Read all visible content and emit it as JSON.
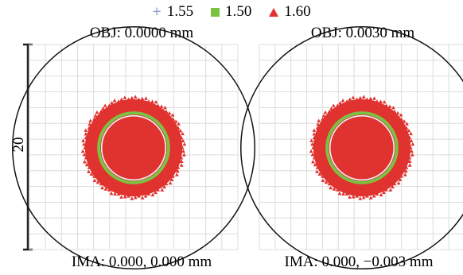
{
  "chart_data": {
    "type": "scatter",
    "chart_kind": "spot diagram",
    "legend": {
      "placement": "top-center",
      "entries": [
        {
          "label": "1.55",
          "symbol": "cross",
          "color": "#8fa0d8"
        },
        {
          "label": "1.50",
          "symbol": "square",
          "color": "#7cc142"
        },
        {
          "label": "1.60",
          "symbol": "triangle",
          "color": "#e0322e"
        }
      ]
    },
    "scale_bar": {
      "label": "20",
      "value": 20
    },
    "grid": true,
    "plots": [
      {
        "title": "OBJ: 0.0000 mm",
        "caption": "IMA: 0.000, 0.000 mm",
        "airy_radius": 11.8,
        "spot_radius_160": 4.9,
        "spot_radius_150": 3.4,
        "spot_radius_155": 3.2
      },
      {
        "title": "OBJ: 0.0030 mm",
        "caption": "IMA: 0.000, −0.003 mm",
        "airy_radius": 11.8,
        "spot_radius_160": 4.9,
        "spot_radius_150": 3.4,
        "spot_radius_155": 3.2
      }
    ]
  }
}
